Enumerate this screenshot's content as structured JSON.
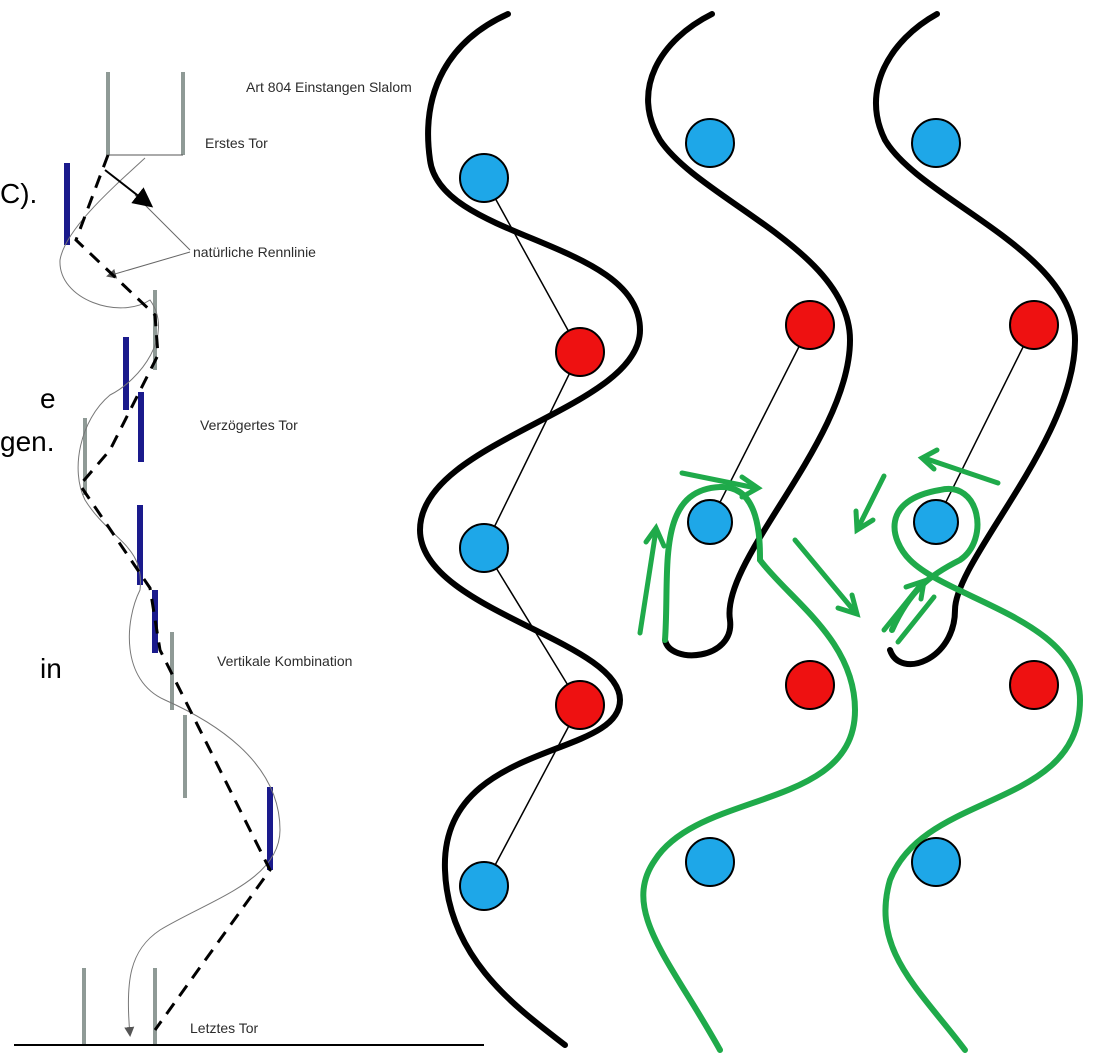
{
  "cropped_text_fragments": [
    "C).",
    "e",
    "gen.",
    "in"
  ],
  "left_diagram": {
    "title": "Art 804 Einstangen Slalom",
    "labels": {
      "first_gate": "Erstes Tor",
      "natural_line": "natürliche Rennlinie",
      "delayed_gate": "Verzögertes Tor",
      "vertical_combination": "Vertikale Kombination",
      "last_gate": "Letztes Tor"
    }
  },
  "colors": {
    "gate_blue": "#1ea7e8",
    "gate_red": "#ee1111",
    "racing_line_black": "#000000",
    "correction_green": "#1faa4a",
    "pole_blue": "#1a1a8c",
    "pole_gray": "#8f9a96"
  }
}
